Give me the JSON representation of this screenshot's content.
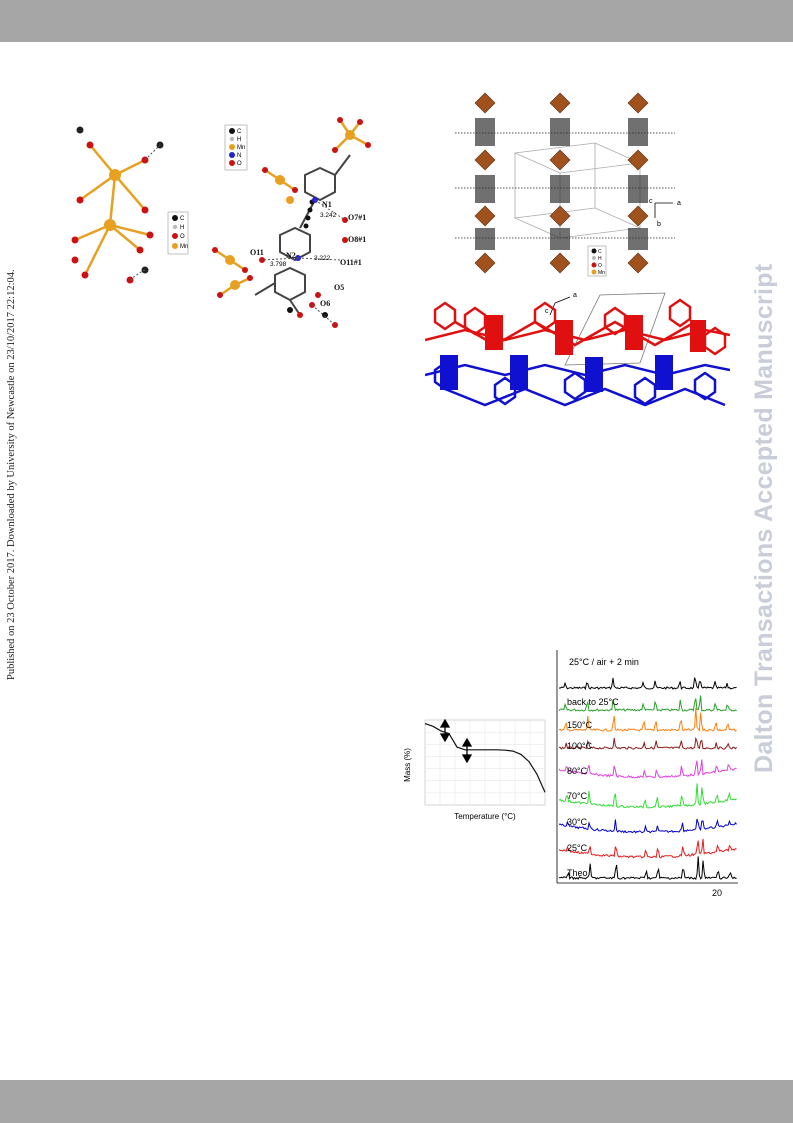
{
  "header": {
    "bar": ""
  },
  "sidebar_left": {
    "text": "Published on 23 October 2017. Downloaded by University of Newcastle on 23/10/2017 22:12:04."
  },
  "sidebar_right": {
    "text": "Dalton Transactions Accepted Manuscript"
  },
  "figure_a": {
    "legend": [
      "C",
      "H",
      "O",
      "Mn"
    ],
    "legend2": [
      "C",
      "H",
      "Mn",
      "N",
      "O"
    ],
    "labels": [
      "N1",
      "3.242",
      "O7#1",
      "O8#1",
      "O11",
      "N2",
      "3.222",
      "3.798",
      "O11#1",
      "O5",
      "O6"
    ]
  },
  "figure_b": {
    "axes": [
      "c",
      "a",
      "b"
    ],
    "legend": [
      "C",
      "H",
      "O",
      "Mn"
    ],
    "axes2": [
      "c",
      "a"
    ]
  },
  "tga": {
    "chart_data": {
      "type": "line",
      "xlabel": "Temperature (°C)",
      "ylabel": "Mass (%)",
      "x": [
        25,
        50,
        75,
        100,
        125,
        150,
        175,
        200,
        225,
        250,
        275,
        300,
        325,
        350,
        375,
        400
      ],
      "values": [
        100,
        98.5,
        96,
        94.5,
        87,
        85.5,
        85.5,
        85.5,
        85.5,
        85.5,
        85.3,
        84.8,
        83,
        79,
        72,
        62
      ],
      "xlim": [
        25,
        400
      ]
    }
  },
  "pxrd": {
    "chart_data": {
      "type": "line",
      "tick_label": "20",
      "series": [
        {
          "name": "25°C / air + 2 min",
          "color": "#000000"
        },
        {
          "name": "back to 25°C",
          "color": "#2ca02c"
        },
        {
          "name": "150°C",
          "color": "#ff7f0e"
        },
        {
          "name": "100°C",
          "color": "#8b1a1a"
        },
        {
          "name": "80°C",
          "color": "#e040e0"
        },
        {
          "name": "70°C",
          "color": "#33dd33"
        },
        {
          "name": "30°C",
          "color": "#0000cc"
        },
        {
          "name": "25°C",
          "color": "#e31a1c"
        },
        {
          "name": "Theo",
          "color": "#000000"
        }
      ]
    }
  },
  "footer": {
    "bar": ""
  }
}
